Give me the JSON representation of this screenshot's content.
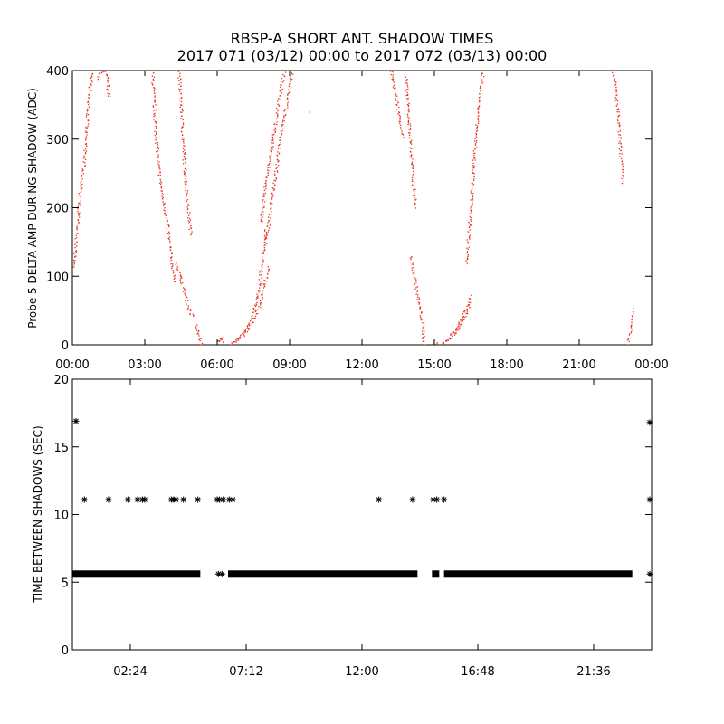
{
  "chart_data": [
    {
      "type": "scatter",
      "title": "RBSP-A SHORT ANT. SHADOW TIMES",
      "subtitle": "2017 071 (03/12) 00:00 to 2017 072 (03/13) 00:00",
      "ylabel": "Probe 5 DELTA AMP DURING SHADOW (ADC)",
      "xlabel": "",
      "x_units": "hours",
      "xlim": [
        0,
        24
      ],
      "ylim": [
        0,
        400
      ],
      "x_tick_values": [
        0,
        3,
        6,
        9,
        12,
        15,
        18,
        21,
        24
      ],
      "x_tick_labels": [
        "00:00",
        "03:00",
        "06:00",
        "09:00",
        "12:00",
        "15:00",
        "18:00",
        "21:00",
        "00:00"
      ],
      "y_tick_values": [
        0,
        100,
        200,
        300,
        400
      ],
      "y_tick_labels": [
        "0",
        "100",
        "200",
        "300",
        "400"
      ],
      "grid": false,
      "marker_color": "#e8321e",
      "series": [
        {
          "points": [
            [
              0.0,
              110
            ],
            [
              0.1,
              140
            ],
            [
              0.2,
              180
            ],
            [
              0.3,
              220
            ],
            [
              0.45,
              260
            ],
            [
              0.6,
              330
            ],
            [
              0.7,
              370
            ],
            [
              0.8,
              400
            ]
          ]
        },
        {
          "points": [
            [
              1.0,
              390
            ],
            [
              1.2,
              400
            ],
            [
              1.4,
              395
            ],
            [
              1.5,
              360
            ]
          ]
        },
        {
          "points": [
            [
              3.3,
              400
            ],
            [
              3.4,
              330
            ],
            [
              3.55,
              260
            ],
            [
              3.7,
              220
            ],
            [
              3.8,
              200
            ],
            [
              3.9,
              180
            ],
            [
              4.0,
              150
            ],
            [
              4.1,
              120
            ],
            [
              4.2,
              100
            ],
            [
              4.3,
              90
            ]
          ]
        },
        {
          "points": [
            [
              4.4,
              400
            ],
            [
              4.5,
              340
            ],
            [
              4.6,
              280
            ],
            [
              4.7,
              230
            ],
            [
              4.8,
              190
            ],
            [
              4.9,
              160
            ]
          ]
        },
        {
          "points": [
            [
              4.3,
              120
            ],
            [
              4.45,
              100
            ],
            [
              4.6,
              80
            ],
            [
              4.75,
              60
            ],
            [
              4.9,
              45
            ],
            [
              5.0,
              40
            ]
          ]
        },
        {
          "points": [
            [
              5.1,
              30
            ],
            [
              5.2,
              15
            ],
            [
              5.3,
              5
            ],
            [
              5.35,
              0
            ]
          ]
        },
        {
          "points": [
            [
              6.0,
              5
            ],
            [
              6.1,
              8
            ],
            [
              6.2,
              10
            ],
            [
              6.25,
              3
            ]
          ]
        },
        {
          "points": [
            [
              6.5,
              2
            ],
            [
              6.8,
              8
            ],
            [
              7.1,
              15
            ],
            [
              7.4,
              30
            ],
            [
              7.7,
              55
            ],
            [
              7.9,
              80
            ],
            [
              8.1,
              115
            ]
          ]
        },
        {
          "points": [
            [
              6.7,
              5
            ],
            [
              7.0,
              15
            ],
            [
              7.3,
              30
            ],
            [
              7.5,
              50
            ],
            [
              7.7,
              80
            ],
            [
              7.85,
              120
            ],
            [
              8.0,
              170
            ]
          ]
        },
        {
          "points": [
            [
              8.0,
              150
            ],
            [
              8.2,
              200
            ],
            [
              8.4,
              250
            ],
            [
              8.6,
              300
            ],
            [
              8.8,
              340
            ],
            [
              9.0,
              380
            ],
            [
              9.1,
              400
            ]
          ]
        },
        {
          "points": [
            [
              7.8,
              180
            ],
            [
              8.0,
              240
            ],
            [
              8.3,
              300
            ],
            [
              8.5,
              350
            ],
            [
              8.7,
              390
            ],
            [
              8.8,
              400
            ]
          ]
        },
        {
          "points": [
            [
              9.8,
              340
            ]
          ]
        },
        {
          "points": [
            [
              13.2,
              400
            ],
            [
              13.3,
              380
            ],
            [
              13.5,
              340
            ],
            [
              13.7,
              300
            ]
          ]
        },
        {
          "points": [
            [
              13.8,
              390
            ],
            [
              13.9,
              340
            ],
            [
              14.0,
              290
            ],
            [
              14.1,
              240
            ],
            [
              14.2,
              200
            ]
          ]
        },
        {
          "points": [
            [
              14.0,
              130
            ],
            [
              14.1,
              110
            ],
            [
              14.2,
              90
            ],
            [
              14.3,
              70
            ],
            [
              14.4,
              50
            ],
            [
              14.5,
              30
            ],
            [
              14.55,
              0
            ]
          ]
        },
        {
          "points": [
            [
              15.0,
              5
            ],
            [
              15.1,
              0
            ]
          ]
        },
        {
          "points": [
            [
              15.3,
              2
            ],
            [
              15.6,
              10
            ],
            [
              15.9,
              25
            ],
            [
              16.2,
              45
            ],
            [
              16.4,
              60
            ],
            [
              16.5,
              75
            ]
          ]
        },
        {
          "points": [
            [
              15.5,
              5
            ],
            [
              15.8,
              15
            ],
            [
              16.1,
              30
            ],
            [
              16.3,
              45
            ],
            [
              16.45,
              60
            ]
          ]
        },
        {
          "points": [
            [
              16.3,
              120
            ],
            [
              16.5,
              200
            ],
            [
              16.6,
              260
            ],
            [
              16.75,
              320
            ],
            [
              16.9,
              370
            ],
            [
              17.0,
              400
            ]
          ]
        },
        {
          "points": [
            [
              22.4,
              400
            ],
            [
              22.5,
              370
            ],
            [
              22.6,
              330
            ],
            [
              22.7,
              280
            ],
            [
              22.8,
              235
            ]
          ]
        },
        {
          "points": [
            [
              23.0,
              0
            ],
            [
              23.1,
              20
            ],
            [
              23.2,
              45
            ],
            [
              23.25,
              55
            ]
          ]
        }
      ]
    },
    {
      "type": "scatter",
      "title": "",
      "ylabel": "TIME BETWEEN SHADOWS (SEC)",
      "xlabel": "",
      "x_units": "hours",
      "xlim": [
        0,
        24
      ],
      "ylim": [
        0,
        20
      ],
      "x_tick_values": [
        2.4,
        7.2,
        12.0,
        16.8,
        21.6
      ],
      "x_tick_labels": [
        "02:24",
        "07:12",
        "12:00",
        "16:48",
        "21:36"
      ],
      "y_tick_values": [
        0,
        5,
        10,
        15,
        20
      ],
      "y_tick_labels": [
        "0",
        "5",
        "10",
        "15",
        "20"
      ],
      "grid": false,
      "marker": "asterisk",
      "marker_color": "#000000",
      "band_value": 5.6,
      "band_segments": [
        [
          0,
          5.3
        ],
        [
          6.45,
          14.3
        ],
        [
          14.9,
          15.2
        ],
        [
          15.4,
          23.2
        ]
      ],
      "points": [
        [
          0.1,
          16.9
        ],
        [
          23.95,
          16.8
        ],
        [
          0.5,
          11.1
        ],
        [
          1.5,
          11.1
        ],
        [
          2.3,
          11.1
        ],
        [
          2.7,
          11.1
        ],
        [
          2.9,
          11.1
        ],
        [
          3.0,
          11.1
        ],
        [
          4.1,
          11.1
        ],
        [
          4.2,
          11.1
        ],
        [
          4.3,
          11.1
        ],
        [
          4.6,
          11.1
        ],
        [
          5.2,
          11.1
        ],
        [
          6.0,
          11.1
        ],
        [
          6.1,
          11.1
        ],
        [
          6.25,
          11.1
        ],
        [
          6.5,
          11.1
        ],
        [
          6.65,
          11.1
        ],
        [
          12.7,
          11.1
        ],
        [
          14.1,
          11.1
        ],
        [
          14.95,
          11.1
        ],
        [
          15.1,
          11.1
        ],
        [
          15.4,
          11.1
        ],
        [
          23.95,
          11.1
        ],
        [
          6.05,
          5.6
        ],
        [
          6.2,
          5.6
        ],
        [
          23.95,
          5.6
        ]
      ]
    }
  ]
}
